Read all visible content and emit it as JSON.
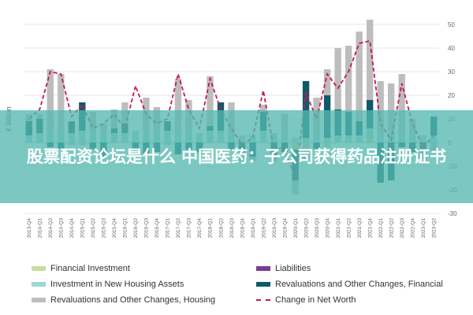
{
  "overlay_title": "股票配资论坛是什么 中国医药：子公司获得药品注册证书",
  "chart_data": {
    "type": "bar",
    "ylabel": "€ Billion",
    "ylim": [
      -30,
      50
    ],
    "yticks": [
      50,
      40,
      30,
      20,
      10,
      0,
      -10,
      -20,
      -30
    ],
    "categories": [
      "2013-Q4",
      "2014-Q1",
      "2014-Q2",
      "2014-Q3",
      "2014-Q4",
      "2015-Q1",
      "2015-Q2",
      "2015-Q3",
      "2015-Q4",
      "2016-Q1",
      "2016-Q2",
      "2016-Q3",
      "2016-Q4",
      "2017-Q1",
      "2017-Q2",
      "2017-Q3",
      "2017-Q4",
      "2018-Q1",
      "2018-Q2",
      "2018-Q3",
      "2018-Q4",
      "2019-Q1",
      "2019-Q2",
      "2019-Q3",
      "2019-Q4",
      "2020-Q1",
      "2020-Q2",
      "2020-Q3",
      "2020-Q4",
      "2021-Q1",
      "2021-Q2",
      "2021-Q3",
      "2021-Q4",
      "2022-Q1",
      "2022-Q2",
      "2022-Q3",
      "2022-Q4",
      "2023-Q1",
      "2023-Q2"
    ],
    "series": [
      {
        "name": "Financial Investment",
        "color": "#c5e0a0",
        "values": [
          0,
          0,
          0,
          0,
          0,
          0,
          0,
          0,
          0,
          0,
          0,
          0,
          0,
          0,
          0,
          0,
          0,
          0,
          0,
          0,
          0,
          0,
          0,
          0,
          0,
          -3,
          -2,
          0,
          -2,
          0,
          0,
          0,
          2,
          0,
          0,
          0,
          0,
          0,
          0
        ]
      },
      {
        "name": "Liabilities",
        "color": "#7a3e8c",
        "values": [
          0,
          0,
          0,
          0,
          0,
          0,
          0,
          0,
          0,
          0,
          0,
          0,
          0,
          0,
          0,
          0,
          0,
          0,
          0,
          0,
          0,
          0,
          0,
          0,
          0,
          0,
          0,
          0,
          0,
          0,
          0,
          0,
          0,
          0,
          0,
          0,
          0,
          0,
          0
        ]
      },
      {
        "name": "Investment in New Housing Assets",
        "color": "#9fd6d6",
        "values": [
          3,
          4,
          4,
          4,
          4,
          5,
          5,
          4,
          4,
          4,
          5,
          5,
          4,
          5,
          5,
          4,
          4,
          5,
          5,
          4,
          3,
          3,
          5,
          4,
          4,
          2,
          2,
          3,
          2,
          3,
          3,
          3,
          4,
          4,
          5,
          4,
          4,
          3,
          3
        ]
      },
      {
        "name": "Revaluations and Other Changes, Financial",
        "color": "#0e5a6b",
        "values": [
          6,
          6,
          -2,
          -3,
          5,
          12,
          -3,
          -6,
          2,
          4,
          -4,
          -5,
          -4,
          4,
          -5,
          -3,
          -4,
          2,
          12,
          -3,
          -4,
          -6,
          8,
          -6,
          -4,
          -13,
          24,
          -3,
          18,
          11,
          10,
          6,
          12,
          -17,
          -16,
          -2,
          -4,
          -3,
          8
        ]
      },
      {
        "name": "Revaluations and Other Changes, Housing",
        "color": "#bdbdbd",
        "values": [
          3,
          2,
          27,
          25,
          -1,
          -1,
          8,
          4,
          8,
          9,
          -3,
          14,
          11,
          -1,
          22,
          14,
          -1,
          21,
          0,
          13,
          -4,
          -2,
          3,
          -2,
          8,
          -6,
          -5,
          16,
          11,
          26,
          28,
          38,
          34,
          22,
          20,
          25,
          6,
          -6,
          -4
        ]
      }
    ],
    "line": {
      "name": "Change in Net Worth",
      "color": "#c2185b",
      "values": [
        10,
        14,
        30,
        29,
        11,
        16,
        6,
        8,
        12,
        6,
        24,
        12,
        8,
        10,
        29,
        14,
        6,
        27,
        14,
        6,
        -1,
        2,
        22,
        -3,
        -2,
        -16,
        21,
        10,
        29,
        23,
        30,
        42,
        43,
        8,
        1,
        25,
        8,
        -2,
        3
      ]
    }
  }
}
